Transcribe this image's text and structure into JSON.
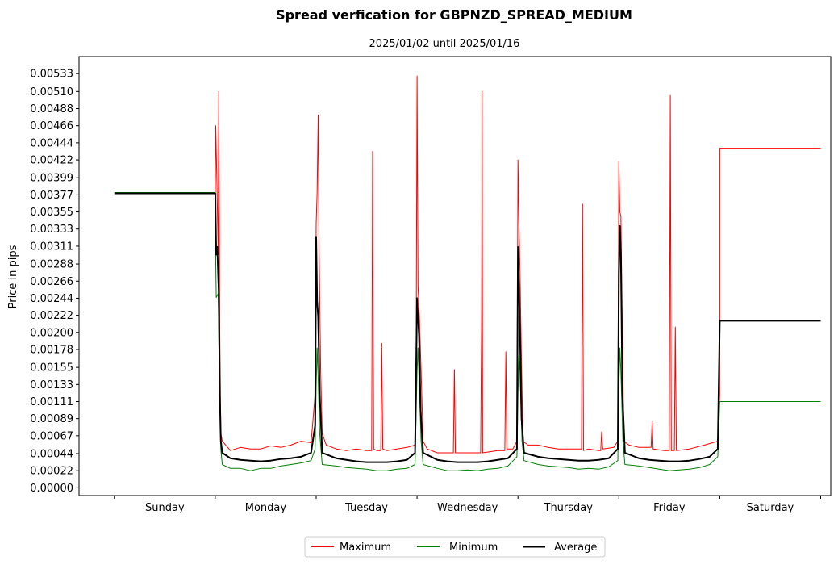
{
  "chart_data": {
    "type": "line",
    "title": "Spread verfication for GBPNZD_SPREAD_MEDIUM",
    "subtitle": "2025/01/02 until 2025/01/16",
    "ylabel": "Price in pips",
    "xlabel": "",
    "ylim": [
      -0.0001,
      0.00555
    ],
    "xlim": [
      -0.35,
      7.1
    ],
    "y_ticks": [
      "0.00000",
      "0.00022",
      "0.00044",
      "0.00067",
      "0.00089",
      "0.00111",
      "0.00133",
      "0.00155",
      "0.00178",
      "0.00200",
      "0.00222",
      "0.00244",
      "0.00266",
      "0.00288",
      "0.00311",
      "0.00333",
      "0.00355",
      "0.00377",
      "0.00399",
      "0.00422",
      "0.00444",
      "0.00466",
      "0.00488",
      "0.00510",
      "0.00533"
    ],
    "categories": [
      "Sunday",
      "Monday",
      "Tuesday",
      "Wednesday",
      "Thursday",
      "Friday",
      "Saturday"
    ],
    "grid": false,
    "legend_position": "bottom-center",
    "series": [
      {
        "name": "Maximum",
        "color": "#ff0000",
        "width": 1,
        "points": [
          [
            0,
            0.00379
          ],
          [
            0.95,
            0.00379
          ],
          [
            1.0,
            0.00379
          ],
          [
            1.005,
            0.00466
          ],
          [
            1.015,
            0.004
          ],
          [
            1.03,
            0.003
          ],
          [
            1.035,
            0.0051
          ],
          [
            1.045,
            0.002
          ],
          [
            1.055,
            0.0007
          ],
          [
            1.07,
            0.0006
          ],
          [
            1.15,
            0.00048
          ],
          [
            1.25,
            0.00052
          ],
          [
            1.35,
            0.0005
          ],
          [
            1.45,
            0.0005
          ],
          [
            1.55,
            0.00054
          ],
          [
            1.65,
            0.00052
          ],
          [
            1.75,
            0.00055
          ],
          [
            1.85,
            0.0006
          ],
          [
            1.95,
            0.00058
          ],
          [
            1.99,
            0.0012
          ],
          [
            2.0,
            0.0034
          ],
          [
            2.01,
            0.0038
          ],
          [
            2.02,
            0.0048
          ],
          [
            2.03,
            0.003
          ],
          [
            2.045,
            0.0015
          ],
          [
            2.06,
            0.0007
          ],
          [
            2.1,
            0.00055
          ],
          [
            2.2,
            0.0005
          ],
          [
            2.3,
            0.00048
          ],
          [
            2.4,
            0.0005
          ],
          [
            2.5,
            0.00048
          ],
          [
            2.55,
            0.00048
          ],
          [
            2.56,
            0.00433
          ],
          [
            2.57,
            0.0005
          ],
          [
            2.6,
            0.00048
          ],
          [
            2.64,
            0.00048
          ],
          [
            2.65,
            0.00186
          ],
          [
            2.66,
            0.0005
          ],
          [
            2.7,
            0.00048
          ],
          [
            2.8,
            0.0005
          ],
          [
            2.9,
            0.00052
          ],
          [
            2.98,
            0.00055
          ],
          [
            2.99,
            0.0012
          ],
          [
            3.0,
            0.0053
          ],
          [
            3.01,
            0.0026
          ],
          [
            3.025,
            0.00215
          ],
          [
            3.04,
            0.0015
          ],
          [
            3.06,
            0.0006
          ],
          [
            3.1,
            0.0005
          ],
          [
            3.2,
            0.00045
          ],
          [
            3.3,
            0.00045
          ],
          [
            3.36,
            0.00045
          ],
          [
            3.37,
            0.00152
          ],
          [
            3.38,
            0.00045
          ],
          [
            3.5,
            0.00045
          ],
          [
            3.63,
            0.00045
          ],
          [
            3.64,
            0.00225
          ],
          [
            3.645,
            0.0051
          ],
          [
            3.65,
            0.00045
          ],
          [
            3.8,
            0.00048
          ],
          [
            3.87,
            0.00048
          ],
          [
            3.88,
            0.00175
          ],
          [
            3.89,
            0.0005
          ],
          [
            3.95,
            0.0005
          ],
          [
            3.99,
            0.0006
          ],
          [
            4.0,
            0.00422
          ],
          [
            4.01,
            0.0034
          ],
          [
            4.02,
            0.0028
          ],
          [
            4.03,
            0.002
          ],
          [
            4.05,
            0.0006
          ],
          [
            4.1,
            0.00055
          ],
          [
            4.2,
            0.00055
          ],
          [
            4.3,
            0.00052
          ],
          [
            4.4,
            0.0005
          ],
          [
            4.5,
            0.0005
          ],
          [
            4.63,
            0.0005
          ],
          [
            4.64,
            0.00365
          ],
          [
            4.65,
            0.00048
          ],
          [
            4.7,
            0.0005
          ],
          [
            4.8,
            0.00048
          ],
          [
            4.82,
            0.00048
          ],
          [
            4.83,
            0.00072
          ],
          [
            4.84,
            0.0005
          ],
          [
            4.95,
            0.00052
          ],
          [
            4.99,
            0.0006
          ],
          [
            5.0,
            0.0042
          ],
          [
            5.01,
            0.00355
          ],
          [
            5.02,
            0.0035
          ],
          [
            5.035,
            0.002
          ],
          [
            5.05,
            0.0006
          ],
          [
            5.1,
            0.00055
          ],
          [
            5.2,
            0.00052
          ],
          [
            5.3,
            0.00052
          ],
          [
            5.32,
            0.00052
          ],
          [
            5.33,
            0.00085
          ],
          [
            5.34,
            0.0005
          ],
          [
            5.45,
            0.00048
          ],
          [
            5.5,
            0.00048
          ],
          [
            5.51,
            0.00505
          ],
          [
            5.52,
            0.00048
          ],
          [
            5.55,
            0.00048
          ],
          [
            5.56,
            0.00207
          ],
          [
            5.57,
            0.00048
          ],
          [
            5.7,
            0.0005
          ],
          [
            5.85,
            0.00055
          ],
          [
            5.98,
            0.0006
          ],
          [
            6.0,
            0.0012
          ],
          [
            6.0,
            0.00437
          ],
          [
            7.0,
            0.00437
          ]
        ]
      },
      {
        "name": "Minimum",
        "color": "#008000",
        "width": 1,
        "points": [
          [
            0,
            0.0038
          ],
          [
            0.95,
            0.0038
          ],
          [
            1.0,
            0.0038
          ],
          [
            1.005,
            0.0029
          ],
          [
            1.01,
            0.00245
          ],
          [
            1.03,
            0.0025
          ],
          [
            1.04,
            0.0015
          ],
          [
            1.055,
            0.0005
          ],
          [
            1.07,
            0.0003
          ],
          [
            1.15,
            0.00025
          ],
          [
            1.25,
            0.00025
          ],
          [
            1.35,
            0.00022
          ],
          [
            1.45,
            0.00025
          ],
          [
            1.55,
            0.00025
          ],
          [
            1.65,
            0.00028
          ],
          [
            1.75,
            0.0003
          ],
          [
            1.85,
            0.00032
          ],
          [
            1.95,
            0.00035
          ],
          [
            1.99,
            0.0005
          ],
          [
            2.0,
            0.0013
          ],
          [
            2.01,
            0.0018
          ],
          [
            2.02,
            0.0014
          ],
          [
            2.035,
            0.0007
          ],
          [
            2.06,
            0.0003
          ],
          [
            2.2,
            0.00028
          ],
          [
            2.3,
            0.00026
          ],
          [
            2.4,
            0.00025
          ],
          [
            2.5,
            0.00024
          ],
          [
            2.6,
            0.00022
          ],
          [
            2.7,
            0.00022
          ],
          [
            2.8,
            0.00024
          ],
          [
            2.9,
            0.00025
          ],
          [
            2.98,
            0.0003
          ],
          [
            3.0,
            0.0015
          ],
          [
            3.01,
            0.0018
          ],
          [
            3.02,
            0.0014
          ],
          [
            3.04,
            0.0006
          ],
          [
            3.06,
            0.0003
          ],
          [
            3.2,
            0.00025
          ],
          [
            3.3,
            0.00022
          ],
          [
            3.4,
            0.00022
          ],
          [
            3.5,
            0.00023
          ],
          [
            3.6,
            0.00022
          ],
          [
            3.7,
            0.00024
          ],
          [
            3.8,
            0.00025
          ],
          [
            3.9,
            0.00028
          ],
          [
            3.99,
            0.0004
          ],
          [
            4.0,
            0.0012
          ],
          [
            4.01,
            0.0017
          ],
          [
            4.02,
            0.0015
          ],
          [
            4.04,
            0.0006
          ],
          [
            4.06,
            0.00035
          ],
          [
            4.2,
            0.0003
          ],
          [
            4.3,
            0.00028
          ],
          [
            4.4,
            0.00027
          ],
          [
            4.5,
            0.00026
          ],
          [
            4.6,
            0.00024
          ],
          [
            4.7,
            0.00025
          ],
          [
            4.8,
            0.00024
          ],
          [
            4.9,
            0.00027
          ],
          [
            4.99,
            0.00035
          ],
          [
            5.0,
            0.0013
          ],
          [
            5.01,
            0.0018
          ],
          [
            5.02,
            0.0015
          ],
          [
            5.04,
            0.0006
          ],
          [
            5.06,
            0.0003
          ],
          [
            5.2,
            0.00028
          ],
          [
            5.3,
            0.00026
          ],
          [
            5.4,
            0.00024
          ],
          [
            5.5,
            0.00022
          ],
          [
            5.6,
            0.00023
          ],
          [
            5.7,
            0.00024
          ],
          [
            5.8,
            0.00026
          ],
          [
            5.9,
            0.0003
          ],
          [
            5.98,
            0.0004
          ],
          [
            6.0,
            0.00111
          ],
          [
            7.0,
            0.00111
          ]
        ]
      },
      {
        "name": "Average",
        "color": "#000000",
        "width": 2,
        "points": [
          [
            0,
            0.00379
          ],
          [
            0.95,
            0.00379
          ],
          [
            1.0,
            0.00379
          ],
          [
            1.01,
            0.003
          ],
          [
            1.02,
            0.0031
          ],
          [
            1.035,
            0.0025
          ],
          [
            1.045,
            0.0012
          ],
          [
            1.055,
            0.0006
          ],
          [
            1.07,
            0.00045
          ],
          [
            1.15,
            0.00038
          ],
          [
            1.25,
            0.00036
          ],
          [
            1.35,
            0.00035
          ],
          [
            1.45,
            0.00034
          ],
          [
            1.55,
            0.00035
          ],
          [
            1.65,
            0.00037
          ],
          [
            1.75,
            0.00038
          ],
          [
            1.85,
            0.0004
          ],
          [
            1.95,
            0.00045
          ],
          [
            1.99,
            0.0008
          ],
          [
            2.0,
            0.00322
          ],
          [
            2.01,
            0.0024
          ],
          [
            2.02,
            0.0022
          ],
          [
            2.035,
            0.0012
          ],
          [
            2.06,
            0.00045
          ],
          [
            2.2,
            0.00038
          ],
          [
            2.3,
            0.00036
          ],
          [
            2.4,
            0.00034
          ],
          [
            2.5,
            0.00033
          ],
          [
            2.6,
            0.00033
          ],
          [
            2.7,
            0.00033
          ],
          [
            2.8,
            0.00034
          ],
          [
            2.9,
            0.00036
          ],
          [
            2.98,
            0.00045
          ],
          [
            3.0,
            0.00244
          ],
          [
            3.01,
            0.0022
          ],
          [
            3.02,
            0.00195
          ],
          [
            3.035,
            0.001
          ],
          [
            3.06,
            0.00045
          ],
          [
            3.2,
            0.00036
          ],
          [
            3.3,
            0.00034
          ],
          [
            3.4,
            0.00033
          ],
          [
            3.5,
            0.00033
          ],
          [
            3.6,
            0.00033
          ],
          [
            3.7,
            0.00034
          ],
          [
            3.8,
            0.00036
          ],
          [
            3.9,
            0.00038
          ],
          [
            3.99,
            0.0005
          ],
          [
            4.0,
            0.0031
          ],
          [
            4.01,
            0.0026
          ],
          [
            4.02,
            0.002
          ],
          [
            4.035,
            0.0009
          ],
          [
            4.06,
            0.00045
          ],
          [
            4.2,
            0.0004
          ],
          [
            4.3,
            0.00038
          ],
          [
            4.4,
            0.00037
          ],
          [
            4.5,
            0.00036
          ],
          [
            4.6,
            0.00035
          ],
          [
            4.7,
            0.00035
          ],
          [
            4.8,
            0.00036
          ],
          [
            4.9,
            0.00038
          ],
          [
            4.99,
            0.0005
          ],
          [
            5.0,
            0.00275
          ],
          [
            5.01,
            0.00337
          ],
          [
            5.02,
            0.003
          ],
          [
            5.035,
            0.0012
          ],
          [
            5.06,
            0.00045
          ],
          [
            5.2,
            0.00038
          ],
          [
            5.3,
            0.00036
          ],
          [
            5.4,
            0.00035
          ],
          [
            5.5,
            0.00034
          ],
          [
            5.6,
            0.00034
          ],
          [
            5.7,
            0.00035
          ],
          [
            5.8,
            0.00037
          ],
          [
            5.9,
            0.0004
          ],
          [
            5.98,
            0.0005
          ],
          [
            6.0,
            0.00215
          ],
          [
            7.0,
            0.00215
          ]
        ]
      }
    ]
  }
}
